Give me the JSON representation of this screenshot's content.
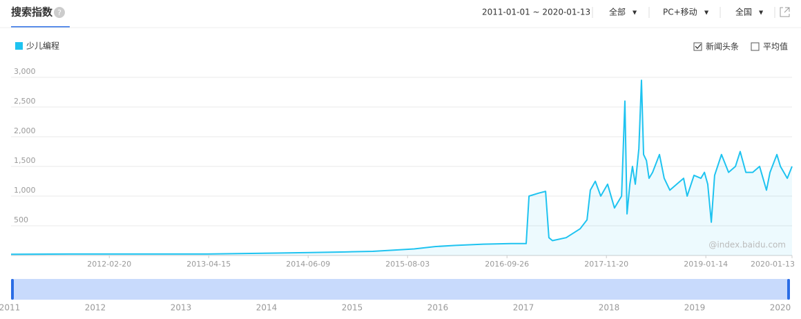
{
  "header": {
    "title": "搜索指数",
    "help": "?",
    "date_range": "2011-01-01 ~ 2020-01-13",
    "filters": [
      "全部",
      "PC+移动",
      "全国"
    ]
  },
  "options": [
    {
      "label": "新闻头条",
      "checked": true
    },
    {
      "label": "平均值",
      "checked": false
    }
  ],
  "watermark": "@index.baidu.com",
  "brush": {
    "labels": [
      "2011",
      "2012",
      "2013",
      "2014",
      "2015",
      "2016",
      "2017",
      "2018",
      "2019",
      "2020"
    ]
  },
  "chart_data": {
    "type": "line",
    "x": [
      "2011-01-01",
      "2011-09-03",
      "2012-06-21",
      "2013-04-08",
      "2014-01-25",
      "2014-06-20",
      "2014-11-13",
      "2015-03-09",
      "2015-06-05",
      "2015-08-31",
      "2015-11-27",
      "2016-02-22",
      "2016-06-18",
      "2016-10-13",
      "2016-12-16",
      "2016-12-28",
      "2017-02-07",
      "2017-03-08",
      "2017-03-22",
      "2017-04-06",
      "2017-06-03",
      "2017-08-01",
      "2017-08-30",
      "2017-09-13",
      "2017-10-04",
      "2017-10-27",
      "2017-11-25",
      "2017-12-24",
      "2018-01-23",
      "2018-02-06",
      "2018-02-15",
      "2018-02-27",
      "2018-03-10",
      "2018-03-22",
      "2018-04-06",
      "2018-04-17",
      "2018-04-26",
      "2018-05-08",
      "2018-05-19",
      "2018-06-03",
      "2018-07-02",
      "2018-07-22",
      "2018-08-15",
      "2018-09-13",
      "2018-10-12",
      "2018-10-27",
      "2018-11-25",
      "2018-12-24",
      "2019-01-08",
      "2019-01-22",
      "2019-02-06",
      "2019-02-20",
      "2019-03-21",
      "2019-04-20",
      "2019-05-19",
      "2019-06-08",
      "2019-07-02",
      "2019-07-31",
      "2019-08-29",
      "2019-09-27",
      "2019-10-12",
      "2019-11-10",
      "2019-11-25",
      "2019-12-24",
      "2020-01-13"
    ],
    "series": [
      {
        "name": "少儿编程",
        "color": "#1ec3f0",
        "values": [
          20,
          25,
          25,
          25,
          40,
          50,
          60,
          70,
          90,
          110,
          150,
          170,
          190,
          200,
          200,
          1000,
          1050,
          1080,
          300,
          250,
          300,
          450,
          600,
          1100,
          1250,
          1000,
          1200,
          800,
          1000,
          2600,
          700,
          1200,
          1500,
          1200,
          1800,
          2950,
          1700,
          1600,
          1300,
          1400,
          1700,
          1300,
          1100,
          1200,
          1300,
          1000,
          1350,
          1300,
          1400,
          1200,
          560,
          1350,
          1700,
          1400,
          1500,
          1750,
          1400,
          1400,
          1500,
          1100,
          1400,
          1700,
          1500,
          1300,
          1500
        ]
      }
    ],
    "xlim": [
      "2011-01-01",
      "2020-01-13"
    ],
    "xticks": [
      "2012-02-20",
      "2013-04-15",
      "2014-06-09",
      "2015-08-03",
      "2016-09-26",
      "2017-11-20",
      "2019-01-14",
      "2020-01-13"
    ],
    "ylim": [
      0,
      3000
    ],
    "yticks": [
      {
        "value": 500,
        "label": "500"
      },
      {
        "value": 1000,
        "label": "1,000"
      },
      {
        "value": 1500,
        "label": "1,500"
      },
      {
        "value": 2000,
        "label": "2,000"
      },
      {
        "value": 2500,
        "label": "2,500"
      },
      {
        "value": 3000,
        "label": "3,000"
      }
    ],
    "grid": true
  }
}
